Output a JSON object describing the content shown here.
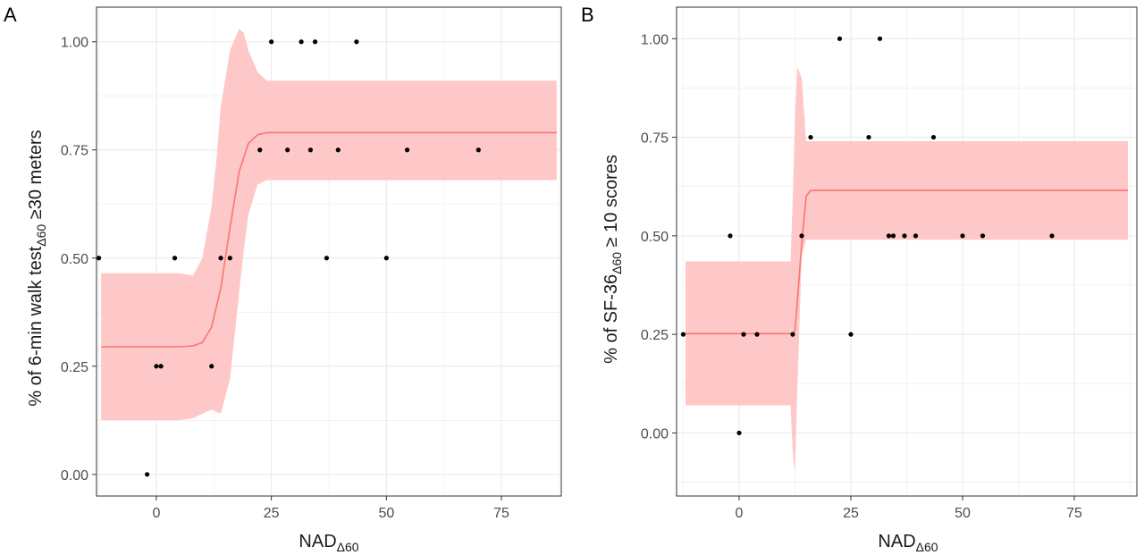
{
  "figure": {
    "panel_labels": [
      "A",
      "B"
    ]
  },
  "colors": {
    "fit_line": "#f8766d",
    "ribbon": "#ffc8c8",
    "points": "#000000",
    "grid": "#ebebeb",
    "panel_border": "#333333"
  },
  "chart_data": [
    {
      "type": "scatter",
      "panel": "A",
      "xlabel": {
        "base": "NAD",
        "sub": "Δ60"
      },
      "ylabel": {
        "pre": "% of 6-min walk test",
        "sub": "Δ60",
        "post": " ≥30 meters"
      },
      "xlim": [
        -13,
        88
      ],
      "ylim": [
        -0.05,
        1.08
      ],
      "xticks": [
        0,
        25,
        50,
        75
      ],
      "xtick_labels": [
        "0",
        "25",
        "50",
        "75"
      ],
      "yticks": [
        0,
        0.25,
        0.5,
        0.75,
        1
      ],
      "ytick_labels": [
        "0.00",
        "0.25",
        "0.50",
        "0.75",
        "1.00"
      ],
      "grid": true,
      "points": [
        {
          "x": -12.5,
          "y": 0.5
        },
        {
          "x": -2,
          "y": 0.0
        },
        {
          "x": 0,
          "y": 0.25
        },
        {
          "x": 1,
          "y": 0.25
        },
        {
          "x": 4,
          "y": 0.5
        },
        {
          "x": 12,
          "y": 0.25
        },
        {
          "x": 14,
          "y": 0.5
        },
        {
          "x": 16,
          "y": 0.5
        },
        {
          "x": 22.5,
          "y": 0.75
        },
        {
          "x": 25,
          "y": 1.0
        },
        {
          "x": 28.5,
          "y": 0.75
        },
        {
          "x": 31.5,
          "y": 1.0
        },
        {
          "x": 33.5,
          "y": 0.75
        },
        {
          "x": 34.5,
          "y": 1.0
        },
        {
          "x": 37,
          "y": 0.5
        },
        {
          "x": 39.5,
          "y": 0.75
        },
        {
          "x": 43.5,
          "y": 1.0
        },
        {
          "x": 50,
          "y": 0.5
        },
        {
          "x": 54.5,
          "y": 0.75
        },
        {
          "x": 70,
          "y": 0.75
        }
      ],
      "fit": {
        "x": [
          -12,
          5,
          8,
          10,
          12,
          14,
          16,
          18,
          20,
          22,
          24,
          28,
          87
        ],
        "y": [
          0.295,
          0.295,
          0.297,
          0.305,
          0.34,
          0.43,
          0.57,
          0.7,
          0.765,
          0.785,
          0.79,
          0.79,
          0.79
        ]
      },
      "ribbon": {
        "x": [
          -12,
          5,
          8,
          10,
          12,
          13,
          14,
          16,
          18,
          19,
          20,
          22,
          24,
          26,
          30,
          87
        ],
        "lower": [
          0.125,
          0.125,
          0.13,
          0.14,
          0.15,
          0.145,
          0.14,
          0.22,
          0.42,
          0.52,
          0.6,
          0.67,
          0.68,
          0.68,
          0.68,
          0.68
        ],
        "upper": [
          0.465,
          0.465,
          0.46,
          0.5,
          0.62,
          0.72,
          0.85,
          0.98,
          1.03,
          1.02,
          0.98,
          0.93,
          0.91,
          0.91,
          0.91,
          0.91
        ]
      }
    },
    {
      "type": "scatter",
      "panel": "B",
      "xlabel": {
        "base": "NAD",
        "sub": "Δ60"
      },
      "ylabel": {
        "pre": "% of SF-36",
        "sub": "Δ60",
        "post": " ≥ 10 scores"
      },
      "xlim": [
        -14,
        89
      ],
      "ylim": [
        -0.16,
        1.08
      ],
      "xticks": [
        0,
        25,
        50,
        75
      ],
      "xtick_labels": [
        "0",
        "25",
        "50",
        "75"
      ],
      "yticks": [
        0,
        0.25,
        0.5,
        0.75,
        1
      ],
      "ytick_labels": [
        "0.00",
        "0.25",
        "0.50",
        "0.75",
        "1.00"
      ],
      "grid": true,
      "points": [
        {
          "x": -12.5,
          "y": 0.25
        },
        {
          "x": -2,
          "y": 0.5
        },
        {
          "x": 0,
          "y": 0.0
        },
        {
          "x": 1,
          "y": 0.25
        },
        {
          "x": 4,
          "y": 0.25
        },
        {
          "x": 12,
          "y": 0.25
        },
        {
          "x": 14,
          "y": 0.5
        },
        {
          "x": 16,
          "y": 0.75
        },
        {
          "x": 22.5,
          "y": 1.0
        },
        {
          "x": 25,
          "y": 0.25
        },
        {
          "x": 29,
          "y": 0.75
        },
        {
          "x": 31.5,
          "y": 1.0
        },
        {
          "x": 33.5,
          "y": 0.5
        },
        {
          "x": 34.5,
          "y": 0.5
        },
        {
          "x": 37,
          "y": 0.5
        },
        {
          "x": 39.5,
          "y": 0.5
        },
        {
          "x": 43.5,
          "y": 0.75
        },
        {
          "x": 50,
          "y": 0.5
        },
        {
          "x": 54.5,
          "y": 0.5
        },
        {
          "x": 70,
          "y": 0.5
        }
      ],
      "fit": {
        "x": [
          -12,
          12,
          12.5,
          13,
          14,
          15,
          16,
          87
        ],
        "y": [
          0.252,
          0.252,
          0.26,
          0.33,
          0.48,
          0.6,
          0.615,
          0.615
        ]
      },
      "ribbon": {
        "x": [
          -12,
          11.5,
          12,
          12.5,
          13,
          14,
          15,
          16,
          87
        ],
        "lower": [
          0.07,
          0.07,
          -0.05,
          -0.1,
          0.1,
          0.45,
          0.49,
          0.49,
          0.49
        ],
        "upper": [
          0.435,
          0.435,
          0.6,
          0.8,
          0.93,
          0.9,
          0.74,
          0.74,
          0.74
        ]
      }
    }
  ]
}
